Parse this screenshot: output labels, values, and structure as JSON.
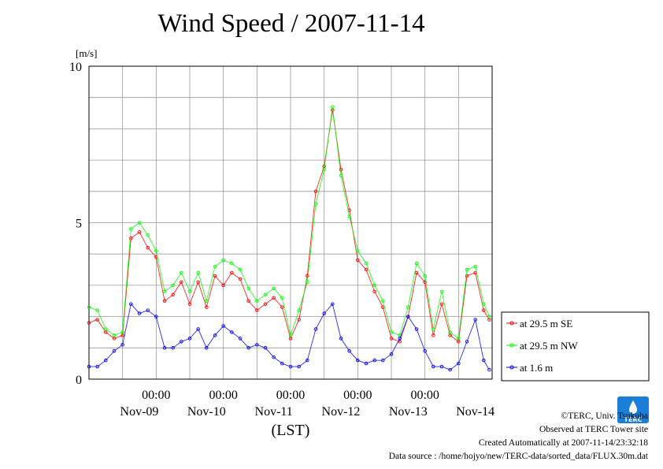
{
  "chart_data": {
    "type": "line",
    "title": "Wind Speed / 2007-11-14",
    "ylabel": "[m/s]",
    "xlabel": "(LST)",
    "ylim": [
      0,
      10
    ],
    "yticks": [
      "0",
      "5",
      "10"
    ],
    "xlim_days": [
      0,
      6
    ],
    "x_unit": "days since 2007-11-09 00:00 LST (x values in hours)",
    "time_tick_label": "00:00",
    "date_labels": [
      "Nov-09",
      "Nov-10",
      "Nov-11",
      "Nov-12",
      "Nov-13",
      "Nov-14"
    ],
    "grid": true,
    "legend_position": "right",
    "series": [
      {
        "name": "at 29.5 m SE",
        "color": "#ff0000",
        "x": [
          0,
          3,
          6,
          9,
          12,
          15,
          18,
          21,
          24,
          27,
          30,
          33,
          36,
          39,
          42,
          45,
          48,
          51,
          54,
          57,
          60,
          63,
          66,
          69,
          72,
          75,
          78,
          81,
          84,
          87,
          90,
          93,
          96,
          99,
          102,
          105,
          108,
          111,
          114,
          117,
          120,
          123,
          126,
          129,
          132,
          135,
          138,
          141,
          143
        ],
        "y": [
          1.8,
          1.9,
          1.5,
          1.3,
          1.4,
          4.5,
          4.7,
          4.2,
          3.9,
          2.5,
          2.7,
          3.1,
          2.4,
          3.1,
          2.3,
          3.3,
          3.0,
          3.4,
          3.2,
          2.5,
          2.2,
          2.4,
          2.6,
          2.3,
          1.3,
          1.9,
          3.3,
          6.0,
          6.8,
          8.6,
          6.7,
          5.4,
          3.8,
          3.5,
          2.8,
          2.3,
          1.3,
          1.2,
          2.0,
          3.4,
          3.1,
          1.4,
          2.4,
          1.4,
          1.2,
          3.3,
          3.4,
          2.2,
          1.9
        ]
      },
      {
        "name": "at 29.5 m NW",
        "color": "#00ff00",
        "x": [
          0,
          3,
          6,
          9,
          12,
          15,
          18,
          21,
          24,
          27,
          30,
          33,
          36,
          39,
          42,
          45,
          48,
          51,
          54,
          57,
          60,
          63,
          66,
          69,
          72,
          75,
          78,
          81,
          84,
          87,
          90,
          93,
          96,
          99,
          102,
          105,
          108,
          111,
          114,
          117,
          120,
          123,
          126,
          129,
          132,
          135,
          138,
          141,
          143
        ],
        "y": [
          2.3,
          2.2,
          1.6,
          1.4,
          1.5,
          4.8,
          5.0,
          4.6,
          4.1,
          2.8,
          3.0,
          3.4,
          2.8,
          3.4,
          2.5,
          3.6,
          3.8,
          3.7,
          3.5,
          2.9,
          2.5,
          2.7,
          2.9,
          2.6,
          1.4,
          2.2,
          3.1,
          5.6,
          6.7,
          8.7,
          6.5,
          5.2,
          4.1,
          3.7,
          3.0,
          2.5,
          1.5,
          1.4,
          2.3,
          3.7,
          3.3,
          1.6,
          2.8,
          1.5,
          1.3,
          3.5,
          3.6,
          2.4,
          2.0
        ]
      },
      {
        "name": "at 1.6 m",
        "color": "#0000ff",
        "x": [
          0,
          3,
          6,
          9,
          12,
          15,
          18,
          21,
          24,
          27,
          30,
          33,
          36,
          39,
          42,
          45,
          48,
          51,
          54,
          57,
          60,
          63,
          66,
          69,
          72,
          75,
          78,
          81,
          84,
          87,
          90,
          93,
          96,
          99,
          102,
          105,
          108,
          111,
          114,
          117,
          120,
          123,
          126,
          129,
          132,
          135,
          138,
          141,
          143
        ],
        "y": [
          0.4,
          0.4,
          0.6,
          0.9,
          1.1,
          2.4,
          2.1,
          2.2,
          2.0,
          1.0,
          1.0,
          1.2,
          1.3,
          1.6,
          1.0,
          1.4,
          1.7,
          1.5,
          1.3,
          1.0,
          1.1,
          1.0,
          0.7,
          0.5,
          0.4,
          0.4,
          0.6,
          1.6,
          2.1,
          2.4,
          1.3,
          0.9,
          0.6,
          0.5,
          0.6,
          0.6,
          0.8,
          1.3,
          2.0,
          1.6,
          0.9,
          0.4,
          0.4,
          0.3,
          0.5,
          1.2,
          1.9,
          0.6,
          0.3
        ]
      }
    ]
  },
  "footer": {
    "copyright": "©TERC, Univ. Tsukuba",
    "observed": "Observed at TERC Tower site",
    "created": "Created Automatically at 2007-11-14/23:32:18",
    "source": "Data source : /home/hojyo/new/TERC-data/sorted_data/FLUX.30m.dat",
    "logo_text": "TERC"
  }
}
